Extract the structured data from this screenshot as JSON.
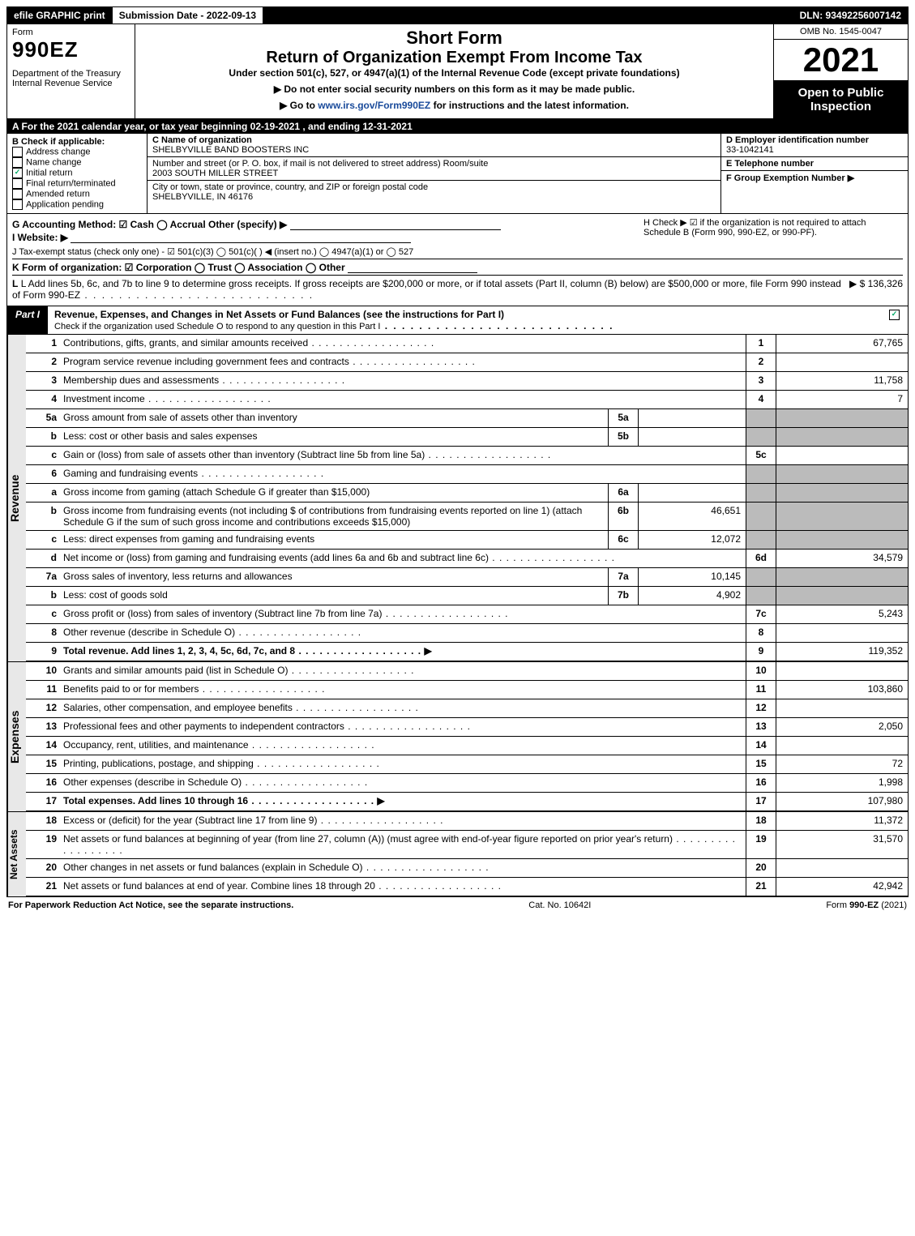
{
  "topbar": {
    "efile": "efile GRAPHIC print",
    "submission": "Submission Date - 2022-09-13",
    "dln": "DLN: 93492256007142"
  },
  "header": {
    "form_label": "Form",
    "form_no": "990EZ",
    "dept": "Department of the Treasury\nInternal Revenue Service",
    "short_form": "Short Form",
    "title": "Return of Organization Exempt From Income Tax",
    "subtitle": "Under section 501(c), 527, or 4947(a)(1) of the Internal Revenue Code (except private foundations)",
    "instr1": "▶ Do not enter social security numbers on this form as it may be made public.",
    "instr2": "▶ Go to www.irs.gov/Form990EZ for instructions and the latest information.",
    "omb": "OMB No. 1545-0047",
    "year": "2021",
    "open": "Open to Public Inspection"
  },
  "row_a": "A  For the 2021 calendar year, or tax year beginning 02-19-2021 , and ending 12-31-2021",
  "sectionB": {
    "heading": "B  Check if applicable:",
    "opts": [
      {
        "label": "Address change",
        "checked": false
      },
      {
        "label": "Name change",
        "checked": false
      },
      {
        "label": "Initial return",
        "checked": true
      },
      {
        "label": "Final return/terminated",
        "checked": false
      },
      {
        "label": "Amended return",
        "checked": false
      },
      {
        "label": "Application pending",
        "checked": false
      }
    ],
    "c_label": "C Name of organization",
    "c_name": "SHELBYVILLE BAND BOOSTERS INC",
    "addr_label": "Number and street (or P. O. box, if mail is not delivered to street address)       Room/suite",
    "addr": "2003 SOUTH MILLER STREET",
    "city_label": "City or town, state or province, country, and ZIP or foreign postal code",
    "city": "SHELBYVILLE, IN  46176",
    "d_label": "D Employer identification number",
    "ein": "33-1042141",
    "e_label": "E Telephone number",
    "f_label": "F Group Exemption Number   ▶"
  },
  "gblock": {
    "g": "G Accounting Method:   ☑ Cash  ◯ Accrual   Other (specify) ▶",
    "h": "H  Check ▶  ☑  if the organization is not required to attach Schedule B (Form 990, 990-EZ, or 990-PF).",
    "i": "I Website: ▶",
    "j": "J Tax-exempt status (check only one) - ☑ 501(c)(3) ◯ 501(c)(  ) ◀ (insert no.) ◯ 4947(a)(1) or ◯ 527",
    "k": "K Form of organization:  ☑ Corporation  ◯ Trust  ◯ Association  ◯ Other",
    "l": "L Add lines 5b, 6c, and 7b to line 9 to determine gross receipts. If gross receipts are $200,000 or more, or if total assets (Part II, column (B) below) are $500,000 or more, file Form 990 instead of Form 990-EZ",
    "l_amt": "▶ $ 136,326"
  },
  "part1": {
    "tag": "Part I",
    "title": "Revenue, Expenses, and Changes in Net Assets or Fund Balances (see the instructions for Part I)",
    "sub": "Check if the organization used Schedule O to respond to any question in this Part I"
  },
  "rows": [
    {
      "ln": "1",
      "desc": "Contributions, gifts, grants, and similar amounts received",
      "n": "1",
      "v": "67,765"
    },
    {
      "ln": "2",
      "desc": "Program service revenue including government fees and contracts",
      "n": "2",
      "v": ""
    },
    {
      "ln": "3",
      "desc": "Membership dues and assessments",
      "n": "3",
      "v": "11,758"
    },
    {
      "ln": "4",
      "desc": "Investment income",
      "n": "4",
      "v": "7"
    },
    {
      "ln": "5a",
      "desc": "Gross amount from sale of assets other than inventory",
      "mb": "5a",
      "mv": "",
      "shade": true
    },
    {
      "ln": "b",
      "desc": "Less: cost or other basis and sales expenses",
      "mb": "5b",
      "mv": "",
      "shade": true
    },
    {
      "ln": "c",
      "desc": "Gain or (loss) from sale of assets other than inventory (Subtract line 5b from line 5a)",
      "n": "5c",
      "v": ""
    },
    {
      "ln": "6",
      "desc": "Gaming and fundraising events",
      "shade": true,
      "noval": true
    },
    {
      "ln": "a",
      "desc": "Gross income from gaming (attach Schedule G if greater than $15,000)",
      "mb": "6a",
      "mv": "",
      "shade": true
    },
    {
      "ln": "b",
      "desc": "Gross income from fundraising events (not including $            of contributions from fundraising events reported on line 1) (attach Schedule G if the sum of such gross income and contributions exceeds $15,000)",
      "mb": "6b",
      "mv": "46,651",
      "shade": true
    },
    {
      "ln": "c",
      "desc": "Less: direct expenses from gaming and fundraising events",
      "mb": "6c",
      "mv": "12,072",
      "shade": true
    },
    {
      "ln": "d",
      "desc": "Net income or (loss) from gaming and fundraising events (add lines 6a and 6b and subtract line 6c)",
      "n": "6d",
      "v": "34,579"
    },
    {
      "ln": "7a",
      "desc": "Gross sales of inventory, less returns and allowances",
      "mb": "7a",
      "mv": "10,145",
      "shade": true
    },
    {
      "ln": "b",
      "desc": "Less: cost of goods sold",
      "mb": "7b",
      "mv": "4,902",
      "shade": true
    },
    {
      "ln": "c",
      "desc": "Gross profit or (loss) from sales of inventory (Subtract line 7b from line 7a)",
      "n": "7c",
      "v": "5,243"
    },
    {
      "ln": "8",
      "desc": "Other revenue (describe in Schedule O)",
      "n": "8",
      "v": ""
    },
    {
      "ln": "9",
      "desc": "Total revenue. Add lines 1, 2, 3, 4, 5c, 6d, 7c, and 8",
      "n": "9",
      "v": "119,352",
      "arrow": true,
      "bold": true
    }
  ],
  "exp_rows": [
    {
      "ln": "10",
      "desc": "Grants and similar amounts paid (list in Schedule O)",
      "n": "10",
      "v": ""
    },
    {
      "ln": "11",
      "desc": "Benefits paid to or for members",
      "n": "11",
      "v": "103,860"
    },
    {
      "ln": "12",
      "desc": "Salaries, other compensation, and employee benefits",
      "n": "12",
      "v": ""
    },
    {
      "ln": "13",
      "desc": "Professional fees and other payments to independent contractors",
      "n": "13",
      "v": "2,050"
    },
    {
      "ln": "14",
      "desc": "Occupancy, rent, utilities, and maintenance",
      "n": "14",
      "v": ""
    },
    {
      "ln": "15",
      "desc": "Printing, publications, postage, and shipping",
      "n": "15",
      "v": "72"
    },
    {
      "ln": "16",
      "desc": "Other expenses (describe in Schedule O)",
      "n": "16",
      "v": "1,998"
    },
    {
      "ln": "17",
      "desc": "Total expenses. Add lines 10 through 16",
      "n": "17",
      "v": "107,980",
      "arrow": true,
      "bold": true
    }
  ],
  "net_rows": [
    {
      "ln": "18",
      "desc": "Excess or (deficit) for the year (Subtract line 17 from line 9)",
      "n": "18",
      "v": "11,372"
    },
    {
      "ln": "19",
      "desc": "Net assets or fund balances at beginning of year (from line 27, column (A)) (must agree with end-of-year figure reported on prior year's return)",
      "n": "19",
      "v": "31,570"
    },
    {
      "ln": "20",
      "desc": "Other changes in net assets or fund balances (explain in Schedule O)",
      "n": "20",
      "v": ""
    },
    {
      "ln": "21",
      "desc": "Net assets or fund balances at end of year. Combine lines 18 through 20",
      "n": "21",
      "v": "42,942"
    }
  ],
  "sidelabels": {
    "rev": "Revenue",
    "exp": "Expenses",
    "net": "Net Assets"
  },
  "footer": {
    "l": "For Paperwork Reduction Act Notice, see the separate instructions.",
    "m": "Cat. No. 10642I",
    "r": "Form 990-EZ (2021)"
  }
}
